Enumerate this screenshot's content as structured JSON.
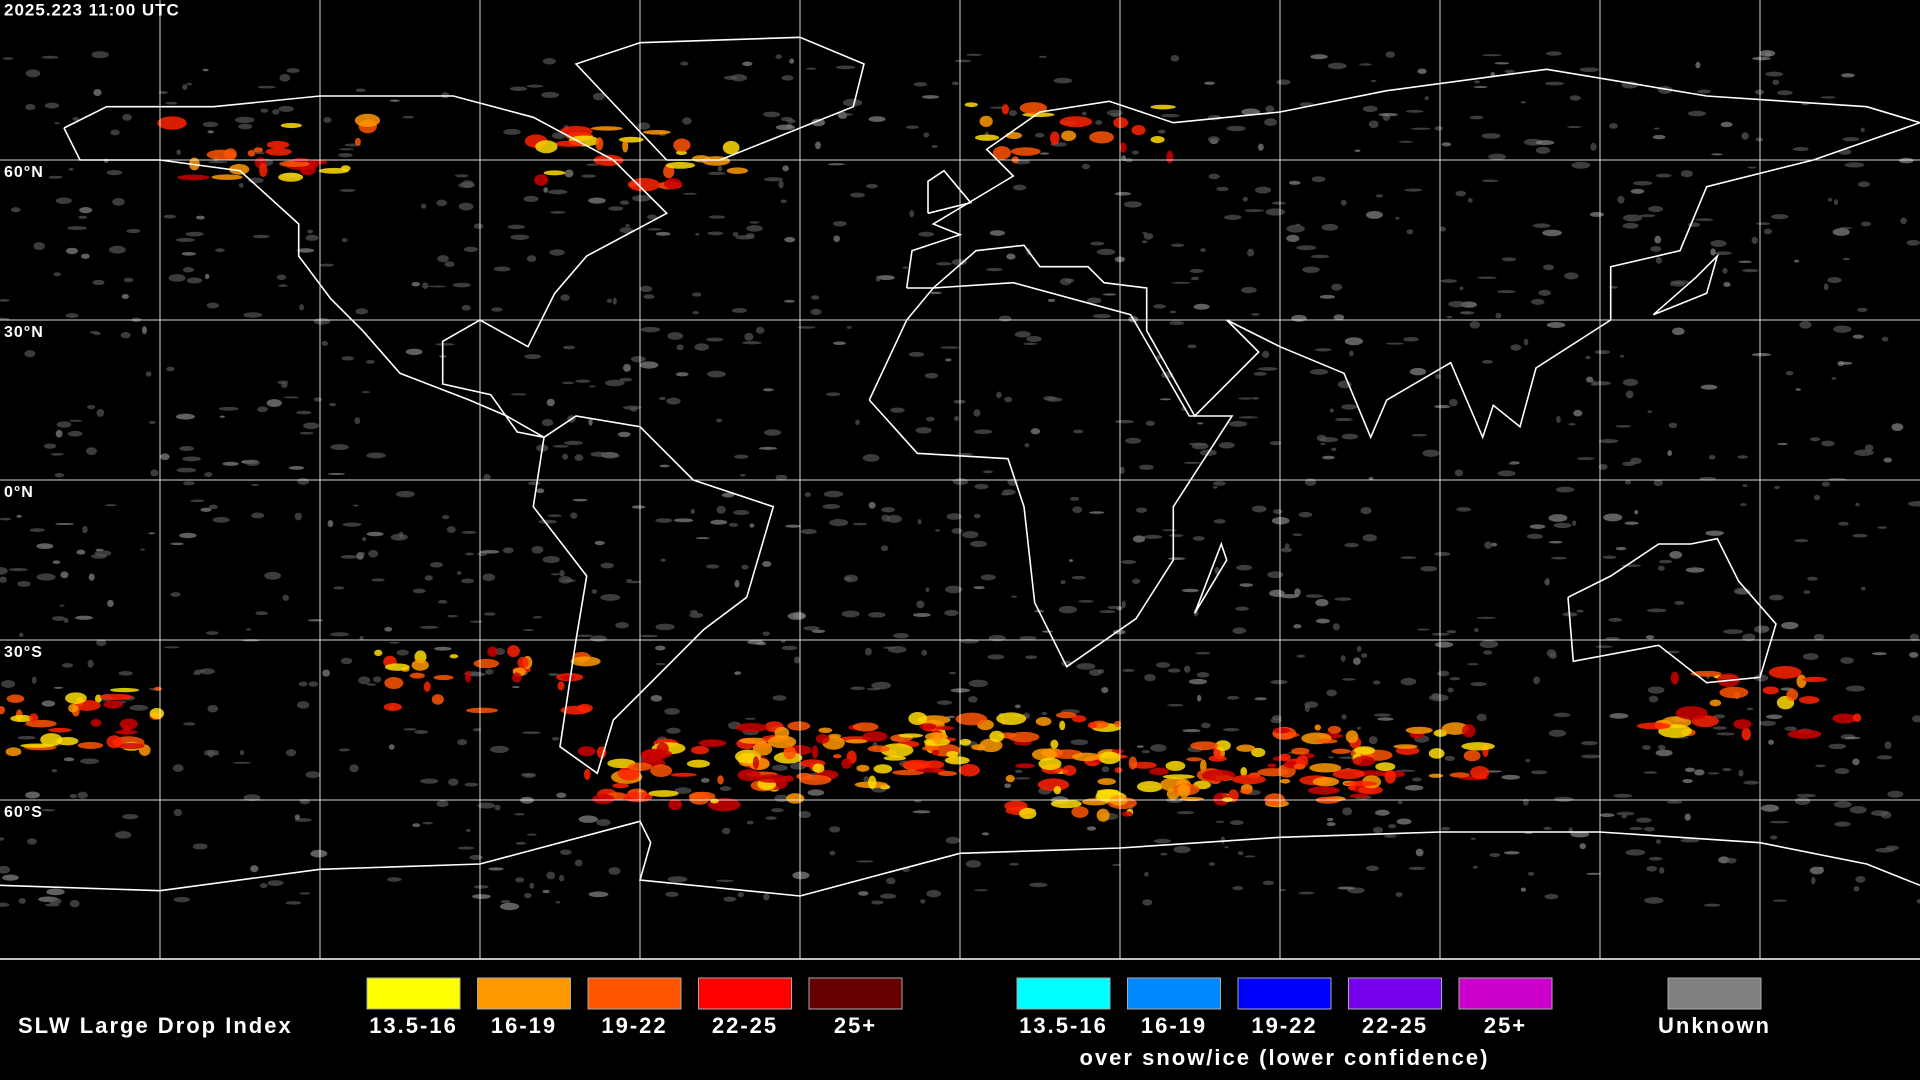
{
  "header": {
    "timestamp": "2025.223 11:00 UTC"
  },
  "map": {
    "lat_labels": [
      "60°N",
      "30°N",
      "0°N",
      "30°S",
      "60°S"
    ]
  },
  "legend": {
    "title": "SLW Large Drop Index",
    "groups": [
      {
        "items": [
          {
            "label": "13.5-16",
            "color": "#ffff00"
          },
          {
            "label": "16-19",
            "color": "#ff9900"
          },
          {
            "label": "19-22",
            "color": "#ff5500"
          },
          {
            "label": "22-25",
            "color": "#ff0000"
          },
          {
            "label": "25+",
            "color": "#660000"
          }
        ]
      },
      {
        "items": [
          {
            "label": "13.5-16",
            "color": "#00ffff"
          },
          {
            "label": "16-19",
            "color": "#0088ff"
          },
          {
            "label": "19-22",
            "color": "#0000ff"
          },
          {
            "label": "22-25",
            "color": "#7700ee"
          },
          {
            "label": "25+",
            "color": "#cc00cc"
          }
        ],
        "note": "over snow/ice (lower confidence)"
      }
    ],
    "unknown": {
      "label": "Unknown",
      "color": "#808080"
    }
  }
}
